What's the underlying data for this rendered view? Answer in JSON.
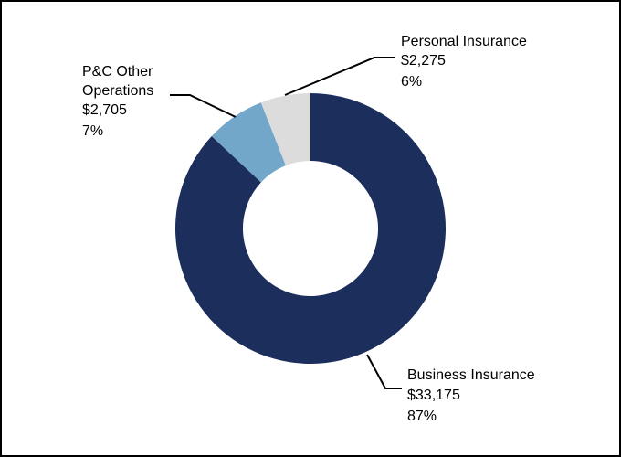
{
  "chart_data": {
    "type": "pie",
    "variant": "donut",
    "title": "",
    "categories": [
      "Business Insurance",
      "Personal Insurance",
      "P&C Other Operations"
    ],
    "values": [
      33175,
      2275,
      2705
    ],
    "percent_labels": [
      "87%",
      "6%",
      "7%"
    ],
    "amount_labels": [
      "$33,175",
      "$2,275",
      "$2,705"
    ],
    "colors": [
      "#1c2e5c",
      "#dcdcdc",
      "#72a7c9"
    ],
    "slice_order": [
      "Business Insurance",
      "P&C Other Operations",
      "Personal Insurance"
    ],
    "start_angle_deg": 0,
    "direction": "clockwise",
    "legend": "none",
    "labels": {
      "business": {
        "name": "Business Insurance",
        "amount": "$33,175",
        "pct": "87%"
      },
      "personal": {
        "name": "Personal Insurance",
        "amount": "$2,275",
        "pct": "6%"
      },
      "other": {
        "name_line1": "P&C Other",
        "name_line2": "Operations",
        "amount": "$2,705",
        "pct": "7%"
      }
    }
  }
}
